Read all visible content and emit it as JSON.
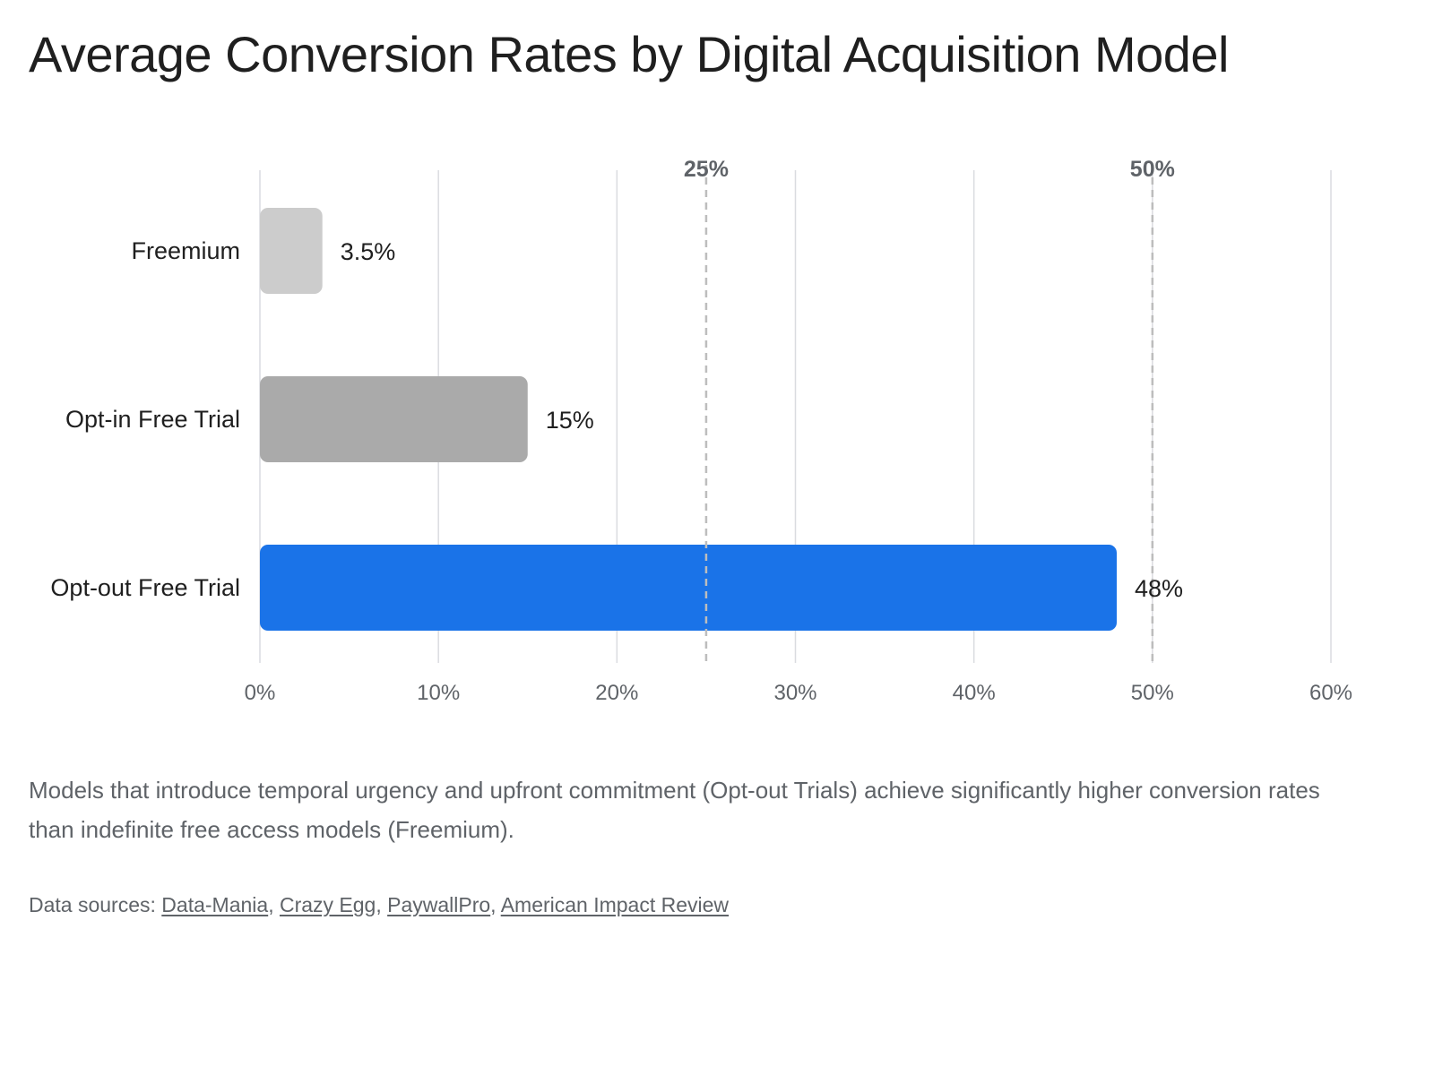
{
  "chart_data": {
    "type": "bar",
    "orientation": "horizontal",
    "title": "Average Conversion Rates by Digital Acquisition Model",
    "categories": [
      "Freemium",
      "Opt-in Free Trial",
      "Opt-out Free Trial"
    ],
    "values": [
      3.5,
      15,
      48
    ],
    "value_labels": [
      "3.5%",
      "15%",
      "48%"
    ],
    "bar_colors": [
      "#cccccc",
      "#aaaaaa",
      "#1a73e8"
    ],
    "xlim": [
      0,
      60
    ],
    "x_ticks": [
      0,
      10,
      20,
      30,
      40,
      50,
      60
    ],
    "x_tick_labels": [
      "0%",
      "10%",
      "20%",
      "30%",
      "40%",
      "50%",
      "60%"
    ],
    "reference_lines": [
      {
        "value": 25,
        "label": "25%"
      },
      {
        "value": 50,
        "label": "50%"
      }
    ],
    "grid": true,
    "xlabel": "",
    "ylabel": ""
  },
  "caption": "Models that introduce temporal urgency and upfront commitment (Opt-out Trials) achieve significantly higher conversion rates than indefinite free access models (Freemium).",
  "sources": {
    "prefix": "Data sources: ",
    "separator": ", ",
    "links": [
      "Data-Mania",
      "Crazy Egg",
      "PaywallPro",
      "American Impact Review"
    ]
  },
  "colors": {
    "text": "#1f1f1f",
    "muted": "#5f6368",
    "grid": "#dadce0",
    "reference_line": "#bdbdbd",
    "accent": "#1a73e8"
  }
}
